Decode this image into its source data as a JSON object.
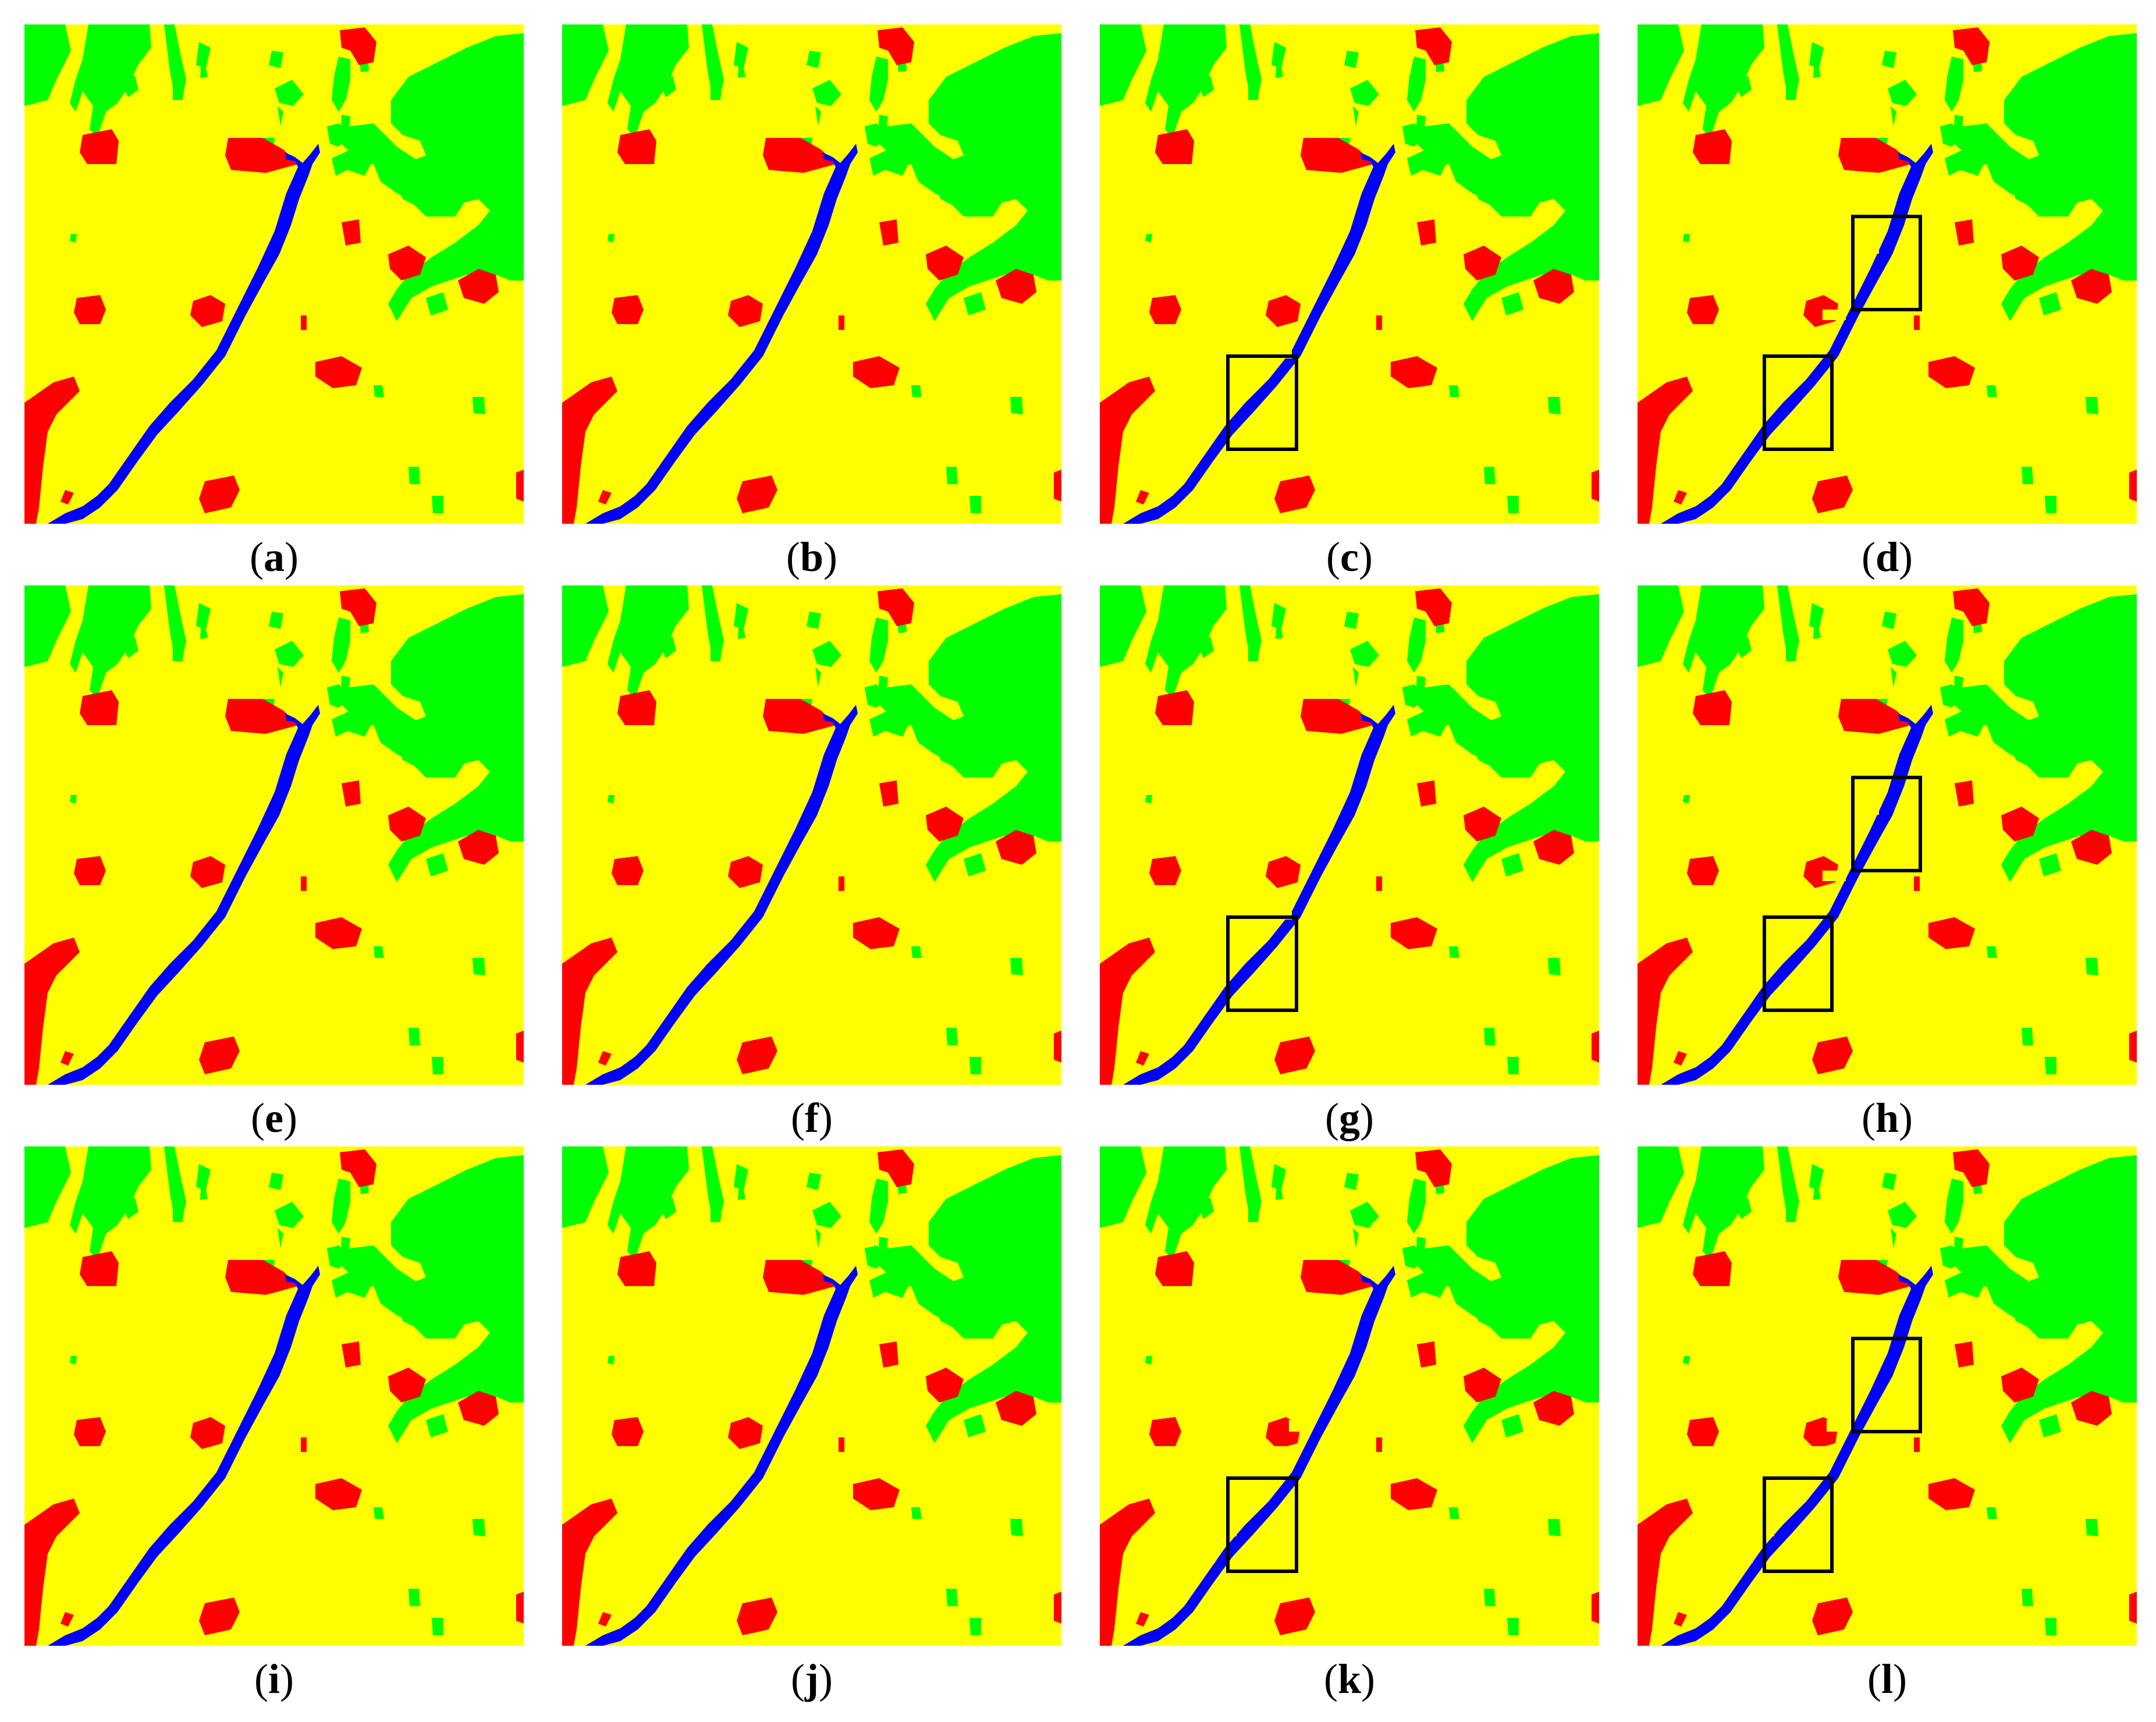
{
  "colors": {
    "background": "#ffff00",
    "vegetation": "#00ff00",
    "building": "#ff0000",
    "water": "#0000ff",
    "highlight_box": "#000000"
  },
  "panels": [
    {
      "id": "a",
      "label_open": "(",
      "letter": "a",
      "label_close": ")",
      "river": "continuous",
      "boxes": 0
    },
    {
      "id": "b",
      "label_open": "(",
      "letter": "b",
      "label_close": ")",
      "river": "continuous",
      "boxes": 0
    },
    {
      "id": "c",
      "label_open": "(",
      "letter": "c",
      "label_close": ")",
      "river": "slight-gap",
      "boxes": 1
    },
    {
      "id": "d",
      "label_open": "(",
      "letter": "d",
      "label_close": ")",
      "river": "fragmented",
      "boxes": 2
    },
    {
      "id": "e",
      "label_open": "(",
      "letter": "e",
      "label_close": ")",
      "river": "continuous",
      "boxes": 0
    },
    {
      "id": "f",
      "label_open": "(",
      "letter": "f",
      "label_close": ")",
      "river": "continuous",
      "boxes": 0
    },
    {
      "id": "g",
      "label_open": "(",
      "letter": "g",
      "label_close": ")",
      "river": "slight-gap",
      "boxes": 1
    },
    {
      "id": "h",
      "label_open": "(",
      "letter": "h",
      "label_close": ")",
      "river": "fragmented",
      "boxes": 2
    },
    {
      "id": "i",
      "label_open": "(",
      "letter": "i",
      "label_close": ")",
      "river": "continuous",
      "boxes": 0
    },
    {
      "id": "j",
      "label_open": "(",
      "letter": "j",
      "label_close": ")",
      "river": "continuous",
      "boxes": 0
    },
    {
      "id": "k",
      "label_open": "(",
      "letter": "k",
      "label_close": ")",
      "river": "broken",
      "boxes": 1
    },
    {
      "id": "l",
      "label_open": "(",
      "letter": "l",
      "label_close": ")",
      "river": "broken",
      "boxes": 2
    }
  ]
}
